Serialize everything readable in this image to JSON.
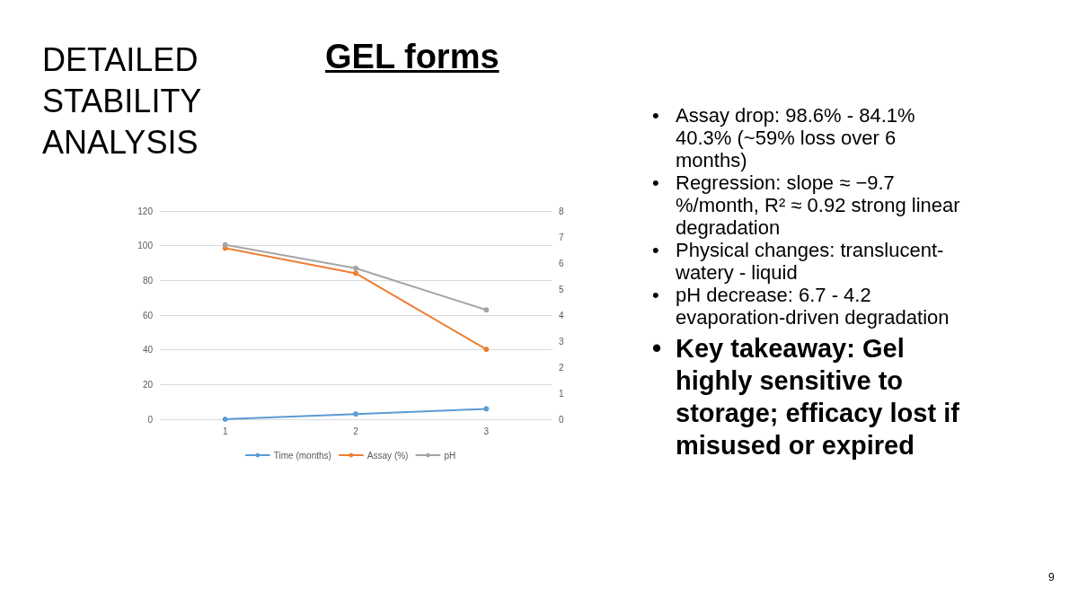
{
  "chart_data": {
    "type": "line",
    "title": "DETAILED STABILITY ANALYSIS",
    "subtitle": "GEL forms",
    "categories": [
      "1",
      "2",
      "3"
    ],
    "series": [
      {
        "name": "Time (months)",
        "color": "#5b9bd5",
        "values": [
          0,
          3,
          6
        ]
      },
      {
        "name": "Assay (%)",
        "color": "#ed7d31",
        "values": [
          98.6,
          84.1,
          40.3
        ]
      },
      {
        "name": "pH",
        "color": "#a5a5a5",
        "values": [
          6.7,
          5.8,
          4.2
        ],
        "axis": "y2"
      }
    ],
    "ylim": [
      0,
      120
    ],
    "yticks": [
      0,
      20,
      40,
      60,
      80,
      100,
      120
    ],
    "y2lim": [
      0,
      8
    ],
    "y2ticks": [
      0,
      1,
      2,
      3,
      4,
      5,
      6,
      7,
      8
    ],
    "grid": "y",
    "legend": "bottom",
    "marker": "circle",
    "line_style": "solid",
    "annotations": [
      "• Assay drop: 98.6% - 84.1% 40.3% (~59% loss over 6 months)",
      "• Regression: slope ≈ −9.7 %/month, R² ≈ 0.92  strong linear degradation",
      "• Physical changes: translucent-watery - liquid",
      "• pH decrease: 6.7 - 4.2 evaporation-driven degradation",
      "• Key takeaway: Gel highly sensitive to storage; efficacy lost if misused or expired",
      "9"
    ]
  }
}
